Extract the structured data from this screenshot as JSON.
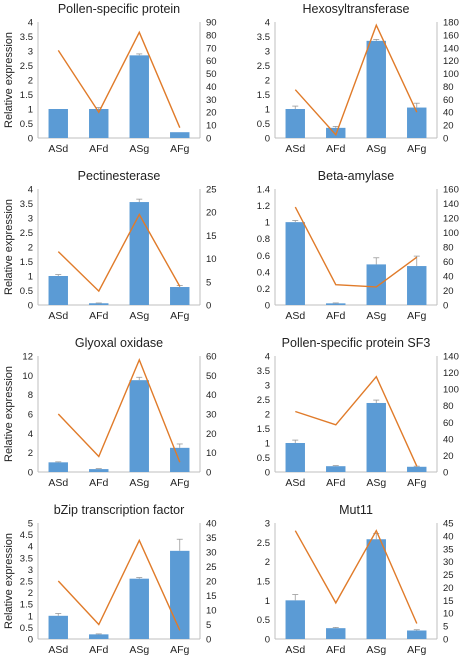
{
  "chart_data": [
    {
      "type": "bar",
      "title": "Pollen-specific protein",
      "ylabel": "Relative expression",
      "categories": [
        "ASd",
        "AFd",
        "ASg",
        "AFg"
      ],
      "ylim": [
        0,
        4
      ],
      "yticks": [
        "0",
        "0.5",
        "1",
        "1.5",
        "2",
        "2.5",
        "3",
        "3.5",
        "4"
      ],
      "values": [
        1.0,
        1.0,
        2.85,
        0.2
      ],
      "errors": [
        0,
        0.05,
        0.05,
        0
      ],
      "line": {
        "values": [
          68,
          20,
          82,
          8
        ],
        "ylim": [
          0,
          90
        ],
        "yticks": [
          "0",
          "10",
          "20",
          "30",
          "40",
          "50",
          "60",
          "70",
          "80",
          "90"
        ]
      }
    },
    {
      "type": "bar",
      "title": "Hexosyltransferase",
      "ylabel": "",
      "categories": [
        "ASd",
        "AFd",
        "ASg",
        "AFg"
      ],
      "ylim": [
        0,
        4
      ],
      "yticks": [
        "0",
        "0.5",
        "1",
        "1.5",
        "2",
        "2.5",
        "3",
        "3.5",
        "4"
      ],
      "values": [
        1.0,
        0.35,
        3.35,
        1.05
      ],
      "errors": [
        0.1,
        0.05,
        0.05,
        0.15
      ],
      "line": {
        "values": [
          75,
          5,
          175,
          40
        ],
        "ylim": [
          0,
          180
        ],
        "yticks": [
          "0",
          "20",
          "40",
          "60",
          "80",
          "100",
          "120",
          "140",
          "160",
          "180"
        ]
      }
    },
    {
      "type": "bar",
      "title": "Pectinesterase",
      "ylabel": "Relative expression",
      "categories": [
        "ASd",
        "AFd",
        "ASg",
        "AFg"
      ],
      "ylim": [
        0,
        4
      ],
      "yticks": [
        "0",
        "0.5",
        "1",
        "1.5",
        "2",
        "2.5",
        "3",
        "3.5",
        "4"
      ],
      "values": [
        1.0,
        0.06,
        3.55,
        0.62
      ],
      "errors": [
        0.05,
        0.01,
        0.1,
        0.05
      ],
      "line": {
        "values": [
          11.5,
          3,
          19.5,
          4
        ],
        "ylim": [
          0,
          25
        ],
        "yticks": [
          "0",
          "5",
          "10",
          "15",
          "20",
          "25"
        ]
      }
    },
    {
      "type": "bar",
      "title": "Beta-amylase",
      "ylabel": "",
      "categories": [
        "ASd",
        "AFd",
        "ASg",
        "AFg"
      ],
      "ylim": [
        0,
        1.4
      ],
      "yticks": [
        "0",
        "0.2",
        "0.4",
        "0.6",
        "0.8",
        "1",
        "1.2",
        "1.4"
      ],
      "values": [
        1.0,
        0.02,
        0.49,
        0.47
      ],
      "errors": [
        0.02,
        0.005,
        0.08,
        0.12
      ],
      "line": {
        "values": [
          135,
          28,
          25,
          66
        ],
        "ylim": [
          0,
          160
        ],
        "yticks": [
          "0",
          "20",
          "40",
          "60",
          "80",
          "100",
          "120",
          "140",
          "160"
        ]
      }
    },
    {
      "type": "bar",
      "title": "Glyoxal oxidase",
      "ylabel": "Relative expression",
      "categories": [
        "ASd",
        "AFd",
        "ASg",
        "AFg"
      ],
      "ylim": [
        0,
        12
      ],
      "yticks": [
        "0",
        "2",
        "4",
        "6",
        "8",
        "10",
        "12"
      ],
      "values": [
        1.0,
        0.3,
        9.5,
        2.5
      ],
      "errors": [
        0.05,
        0.05,
        0.3,
        0.4
      ],
      "line": {
        "values": [
          30,
          8,
          58,
          5
        ],
        "ylim": [
          0,
          60
        ],
        "yticks": [
          "0",
          "10",
          "20",
          "30",
          "40",
          "50",
          "60"
        ]
      }
    },
    {
      "type": "bar",
      "title": "Pollen-specific protein SF3",
      "ylabel": "",
      "categories": [
        "ASd",
        "AFd",
        "ASg",
        "AFg"
      ],
      "ylim": [
        0,
        4
      ],
      "yticks": [
        "0",
        "0.5",
        "1",
        "1.5",
        "2",
        "2.5",
        "3",
        "3.5",
        "4"
      ],
      "values": [
        1.0,
        0.2,
        2.38,
        0.18
      ],
      "errors": [
        0.1,
        0.02,
        0.1,
        0.02
      ],
      "line": {
        "values": [
          73,
          57,
          115,
          7
        ],
        "ylim": [
          0,
          140
        ],
        "yticks": [
          "0",
          "20",
          "40",
          "60",
          "80",
          "100",
          "120",
          "140"
        ]
      }
    },
    {
      "type": "bar",
      "title": "bZip transcription factor",
      "ylabel": "Relative expression",
      "categories": [
        "ASd",
        "AFd",
        "ASg",
        "AFg"
      ],
      "ylim": [
        0,
        5
      ],
      "yticks": [
        "0",
        "0.5",
        "1",
        "1.5",
        "2",
        "2.5",
        "3",
        "3.5",
        "4",
        "4.5",
        "5"
      ],
      "values": [
        1.0,
        0.2,
        2.6,
        3.8
      ],
      "errors": [
        0.1,
        0.02,
        0.05,
        0.5
      ],
      "line": {
        "values": [
          20,
          5,
          34,
          3
        ],
        "ylim": [
          0,
          40
        ],
        "yticks": [
          "0",
          "5",
          "10",
          "15",
          "20",
          "25",
          "30",
          "35",
          "40"
        ]
      }
    },
    {
      "type": "bar",
      "title": "Mut11",
      "ylabel": "",
      "categories": [
        "ASd",
        "AFd",
        "ASg",
        "AFg"
      ],
      "ylim": [
        0,
        3
      ],
      "yticks": [
        "0",
        "0.5",
        "1",
        "1.5",
        "2",
        "2.5",
        "3"
      ],
      "values": [
        1.0,
        0.28,
        2.58,
        0.22
      ],
      "errors": [
        0.15,
        0.02,
        0.15,
        0.02
      ],
      "line": {
        "values": [
          42,
          14,
          42,
          6
        ],
        "ylim": [
          0,
          45
        ],
        "yticks": [
          "0",
          "5",
          "10",
          "15",
          "20",
          "25",
          "30",
          "35",
          "40",
          "45"
        ]
      }
    }
  ],
  "colors": {
    "bar": "#5b9bd5",
    "line": "#e07b2a",
    "axis": "#bfbfbf",
    "error": "#9a9a9a"
  }
}
